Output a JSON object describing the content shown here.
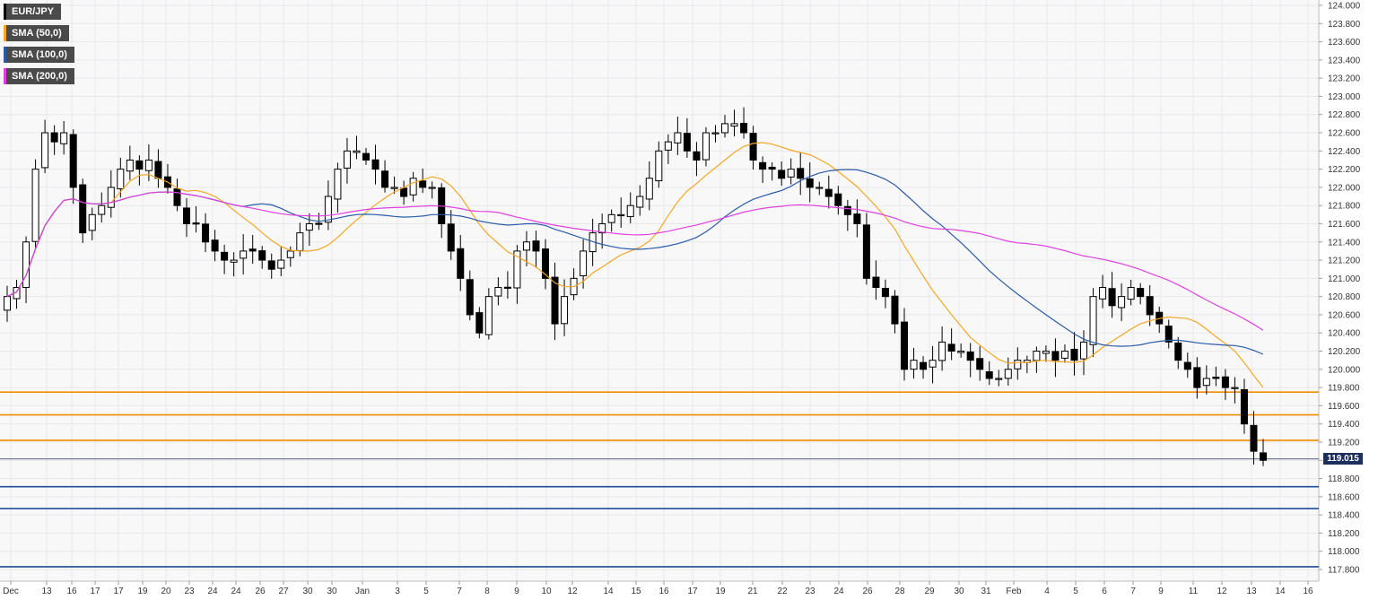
{
  "chart_data": {
    "type": "candlestick",
    "symbol": "EUR/JPY",
    "legend": [
      {
        "label": "EUR/JPY",
        "color": "#000000"
      },
      {
        "label": "SMA (50,0)",
        "color": "#f5a623"
      },
      {
        "label": "SMA (100,0)",
        "color": "#2a5ba8"
      },
      {
        "label": "SMA (200,0)",
        "color": "#e040e0"
      }
    ],
    "ylim": [
      117.7,
      124.0
    ],
    "y_ticks": [
      "124.000",
      "123.800",
      "123.600",
      "123.400",
      "123.200",
      "123.000",
      "122.800",
      "122.600",
      "122.400",
      "122.200",
      "122.000",
      "121.800",
      "121.600",
      "121.400",
      "121.200",
      "121.000",
      "120.800",
      "120.600",
      "120.400",
      "120.200",
      "120.000",
      "119.800",
      "119.600",
      "119.400",
      "119.200",
      "119.000",
      "118.800",
      "118.600",
      "118.400",
      "118.200",
      "118.000",
      "117.800"
    ],
    "x_labels": [
      "Dec",
      "13",
      "16",
      "17",
      "17",
      "19",
      "20",
      "23",
      "24",
      "24",
      "26",
      "27",
      "30",
      "30",
      "Jan",
      "3",
      "5",
      "7",
      "8",
      "9",
      "10",
      "12",
      "14",
      "15",
      "16",
      "17",
      "19",
      "21",
      "22",
      "23",
      "24",
      "26",
      "28",
      "29",
      "30",
      "31",
      "Feb",
      "4",
      "5",
      "6",
      "7",
      "9",
      "11",
      "12",
      "13",
      "14",
      "16"
    ],
    "last_price": "119.015",
    "last_price_value": 119.015,
    "horizontal_levels": [
      {
        "value": 119.75,
        "color": "#f08c00"
      },
      {
        "value": 119.5,
        "color": "#f08c00"
      },
      {
        "value": 119.22,
        "color": "#f08c00"
      },
      {
        "value": 118.71,
        "color": "#1f4e9a"
      },
      {
        "value": 118.47,
        "color": "#1f4e9a"
      },
      {
        "value": 117.83,
        "color": "#1f4e9a"
      }
    ],
    "close": [
      120.8,
      120.9,
      121.4,
      122.2,
      122.6,
      122.5,
      122.6,
      122.0,
      121.5,
      121.7,
      121.8,
      122.0,
      122.2,
      122.3,
      122.2,
      122.3,
      122.1,
      122.0,
      121.8,
      121.6,
      121.6,
      121.4,
      121.3,
      121.2,
      121.2,
      121.3,
      121.3,
      121.2,
      121.1,
      121.2,
      121.3,
      121.5,
      121.6,
      121.6,
      121.9,
      122.2,
      122.4,
      122.4,
      122.3,
      122.2,
      122.0,
      122.0,
      121.9,
      122.1,
      122.0,
      122.0,
      121.6,
      121.3,
      121.0,
      120.6,
      120.4,
      120.8,
      120.9,
      120.9,
      121.3,
      121.4,
      121.3,
      121.0,
      120.5,
      120.8,
      121.0,
      121.3,
      121.5,
      121.6,
      121.7,
      121.7,
      121.8,
      121.9,
      122.1,
      122.4,
      122.5,
      122.6,
      122.4,
      122.3,
      122.6,
      122.6,
      122.7,
      122.7,
      122.6,
      122.3,
      122.2,
      122.2,
      122.1,
      122.2,
      122.1,
      122.0,
      122.0,
      121.9,
      121.8,
      121.7,
      121.6,
      121.0,
      120.9,
      120.8,
      120.5,
      120.0,
      120.1,
      120.0,
      120.1,
      120.3,
      120.2,
      120.2,
      120.1,
      120.0,
      119.9,
      119.9,
      120.0,
      120.1,
      120.1,
      120.2,
      120.2,
      120.1,
      120.2,
      120.1,
      120.3,
      120.8,
      120.9,
      120.7,
      120.8,
      120.9,
      120.8,
      120.6,
      120.5,
      120.3,
      120.1,
      120.0,
      119.8,
      119.9,
      119.9,
      119.8,
      119.8,
      119.4,
      119.1,
      119.0
    ]
  }
}
